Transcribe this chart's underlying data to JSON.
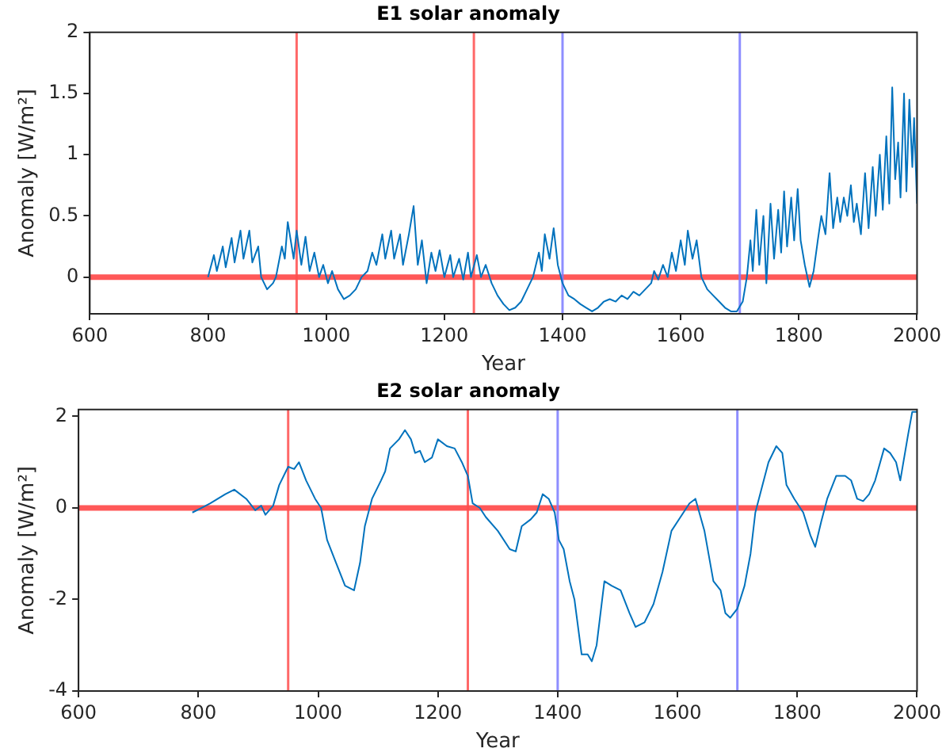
{
  "chart_data": [
    {
      "type": "line",
      "title": "E1 solar anomaly",
      "xlabel": "Year",
      "ylabel": "Anomaly [W/m²]",
      "xlim": [
        600,
        2000
      ],
      "xticks": [
        600,
        800,
        1000,
        1200,
        1400,
        1600,
        1800,
        2000
      ],
      "ylim": [
        -0.3,
        2
      ],
      "yticks": [
        0,
        0.5,
        1,
        1.5,
        2
      ],
      "grid": false,
      "legend": false,
      "ref_lines": [
        {
          "axis": "y",
          "value": 0,
          "color": "#ff3b3b"
        },
        {
          "axis": "x",
          "value": 950,
          "color": "#ff4d4d"
        },
        {
          "axis": "x",
          "value": 1250,
          "color": "#ff4d4d"
        },
        {
          "axis": "x",
          "value": 1400,
          "color": "#7a7aff"
        },
        {
          "axis": "x",
          "value": 1700,
          "color": "#7a7aff"
        }
      ],
      "series": [
        {
          "color": "#0072bd",
          "x": [
            800,
            810,
            815,
            825,
            830,
            840,
            845,
            855,
            860,
            870,
            875,
            885,
            890,
            900,
            910,
            915,
            925,
            930,
            935,
            945,
            950,
            958,
            965,
            972,
            980,
            988,
            995,
            1003,
            1010,
            1020,
            1030,
            1040,
            1050,
            1060,
            1070,
            1078,
            1085,
            1095,
            1100,
            1110,
            1115,
            1125,
            1130,
            1140,
            1148,
            1155,
            1162,
            1170,
            1178,
            1185,
            1192,
            1200,
            1210,
            1215,
            1225,
            1232,
            1240,
            1245,
            1255,
            1262,
            1270,
            1280,
            1290,
            1300,
            1310,
            1320,
            1330,
            1340,
            1350,
            1360,
            1365,
            1370,
            1378,
            1385,
            1392,
            1400,
            1410,
            1420,
            1430,
            1440,
            1450,
            1460,
            1470,
            1480,
            1490,
            1500,
            1510,
            1520,
            1530,
            1540,
            1550,
            1555,
            1562,
            1570,
            1578,
            1585,
            1592,
            1600,
            1607,
            1612,
            1620,
            1627,
            1635,
            1645,
            1655,
            1665,
            1675,
            1685,
            1695,
            1705,
            1712,
            1718,
            1722,
            1728,
            1733,
            1740,
            1745,
            1752,
            1758,
            1765,
            1770,
            1775,
            1780,
            1787,
            1792,
            1798,
            1803,
            1810,
            1818,
            1825,
            1832,
            1838,
            1845,
            1852,
            1858,
            1865,
            1870,
            1876,
            1882,
            1888,
            1893,
            1898,
            1905,
            1912,
            1918,
            1925,
            1930,
            1937,
            1942,
            1948,
            1953,
            1958,
            1963,
            1968,
            1972,
            1978,
            1982,
            1987,
            1992,
            1995,
            2000
          ],
          "values": [
            0.0,
            0.18,
            0.05,
            0.25,
            0.08,
            0.32,
            0.12,
            0.38,
            0.15,
            0.38,
            0.12,
            0.25,
            0.0,
            -0.1,
            -0.05,
            0.0,
            0.25,
            0.15,
            0.45,
            0.15,
            0.38,
            0.1,
            0.33,
            0.05,
            0.2,
            0.0,
            0.1,
            -0.05,
            0.05,
            -0.1,
            -0.18,
            -0.15,
            -0.1,
            0.0,
            0.05,
            0.2,
            0.1,
            0.35,
            0.15,
            0.38,
            0.15,
            0.35,
            0.1,
            0.35,
            0.58,
            0.1,
            0.3,
            -0.05,
            0.2,
            0.05,
            0.22,
            0.0,
            0.18,
            0.0,
            0.15,
            -0.02,
            0.2,
            0.0,
            0.18,
            0.0,
            0.1,
            -0.05,
            -0.15,
            -0.22,
            -0.27,
            -0.25,
            -0.2,
            -0.1,
            0.0,
            0.2,
            0.05,
            0.35,
            0.15,
            0.4,
            0.1,
            -0.05,
            -0.15,
            -0.18,
            -0.22,
            -0.25,
            -0.28,
            -0.25,
            -0.2,
            -0.18,
            -0.2,
            -0.15,
            -0.18,
            -0.12,
            -0.15,
            -0.1,
            -0.05,
            0.05,
            -0.02,
            0.1,
            0.0,
            0.2,
            0.05,
            0.3,
            0.1,
            0.38,
            0.15,
            0.3,
            0.0,
            -0.1,
            -0.15,
            -0.2,
            -0.25,
            -0.28,
            -0.28,
            -0.2,
            0.0,
            0.3,
            0.05,
            0.55,
            0.1,
            0.5,
            -0.05,
            0.6,
            0.15,
            0.55,
            0.2,
            0.7,
            0.25,
            0.65,
            0.3,
            0.72,
            0.3,
            0.1,
            -0.08,
            0.05,
            0.3,
            0.5,
            0.35,
            0.85,
            0.4,
            0.65,
            0.45,
            0.65,
            0.5,
            0.75,
            0.45,
            0.6,
            0.35,
            0.85,
            0.4,
            0.9,
            0.5,
            1.0,
            0.55,
            1.15,
            0.6,
            1.55,
            0.8,
            1.1,
            0.65,
            1.5,
            0.7,
            1.45,
            0.9,
            1.3,
            0.6
          ]
        }
      ]
    },
    {
      "type": "line",
      "title": "E2 solar anomaly",
      "xlabel": "Year",
      "ylabel": "Anomaly [W/m²]",
      "xlim": [
        600,
        2000
      ],
      "xticks": [
        600,
        800,
        1000,
        1200,
        1400,
        1600,
        1800,
        2000
      ],
      "ylim": [
        -4,
        2.15
      ],
      "yticks": [
        -4,
        -2,
        0,
        2
      ],
      "grid": false,
      "legend": false,
      "ref_lines": [
        {
          "axis": "y",
          "value": 0,
          "color": "#ff3b3b"
        },
        {
          "axis": "x",
          "value": 950,
          "color": "#ff4d4d"
        },
        {
          "axis": "x",
          "value": 1250,
          "color": "#ff4d4d"
        },
        {
          "axis": "x",
          "value": 1400,
          "color": "#7a7aff"
        },
        {
          "axis": "x",
          "value": 1700,
          "color": "#7a7aff"
        }
      ],
      "series": [
        {
          "color": "#0072bd",
          "x": [
            790,
            820,
            845,
            860,
            880,
            895,
            905,
            912,
            925,
            935,
            950,
            960,
            968,
            980,
            995,
            1005,
            1015,
            1030,
            1045,
            1060,
            1070,
            1078,
            1090,
            1105,
            1112,
            1120,
            1135,
            1145,
            1155,
            1162,
            1170,
            1178,
            1190,
            1200,
            1215,
            1228,
            1240,
            1250,
            1258,
            1270,
            1280,
            1300,
            1320,
            1330,
            1340,
            1355,
            1365,
            1375,
            1385,
            1395,
            1402,
            1410,
            1420,
            1428,
            1440,
            1450,
            1457,
            1465,
            1478,
            1490,
            1505,
            1520,
            1530,
            1545,
            1560,
            1575,
            1590,
            1605,
            1620,
            1630,
            1645,
            1660,
            1672,
            1680,
            1688,
            1700,
            1712,
            1722,
            1730,
            1742,
            1752,
            1765,
            1775,
            1782,
            1795,
            1810,
            1822,
            1830,
            1840,
            1850,
            1865,
            1880,
            1890,
            1900,
            1910,
            1920,
            1930,
            1945,
            1955,
            1965,
            1972,
            1985,
            1992,
            2000
          ],
          "values": [
            -0.1,
            0.1,
            0.3,
            0.4,
            0.2,
            -0.05,
            0.05,
            -0.15,
            0.05,
            0.5,
            0.9,
            0.85,
            1.0,
            0.6,
            0.2,
            0.0,
            -0.7,
            -1.2,
            -1.7,
            -1.8,
            -1.2,
            -0.4,
            0.2,
            0.6,
            0.8,
            1.3,
            1.5,
            1.7,
            1.5,
            1.2,
            1.25,
            1.0,
            1.1,
            1.5,
            1.35,
            1.3,
            1.0,
            0.7,
            0.1,
            0.0,
            -0.2,
            -0.5,
            -0.9,
            -0.95,
            -0.4,
            -0.25,
            -0.1,
            0.3,
            0.2,
            -0.1,
            -0.7,
            -0.9,
            -1.6,
            -2.0,
            -3.2,
            -3.2,
            -3.35,
            -3.0,
            -1.6,
            -1.7,
            -1.8,
            -2.3,
            -2.6,
            -2.5,
            -2.1,
            -1.4,
            -0.5,
            -0.2,
            0.1,
            0.2,
            -0.5,
            -1.6,
            -1.8,
            -2.3,
            -2.4,
            -2.2,
            -1.7,
            -1.0,
            -0.1,
            0.5,
            1.0,
            1.35,
            1.2,
            0.5,
            0.2,
            -0.1,
            -0.6,
            -0.85,
            -0.3,
            0.2,
            0.7,
            0.7,
            0.6,
            0.2,
            0.15,
            0.3,
            0.6,
            1.3,
            1.2,
            1.0,
            0.6,
            1.6,
            2.1,
            2.1
          ]
        }
      ]
    }
  ]
}
